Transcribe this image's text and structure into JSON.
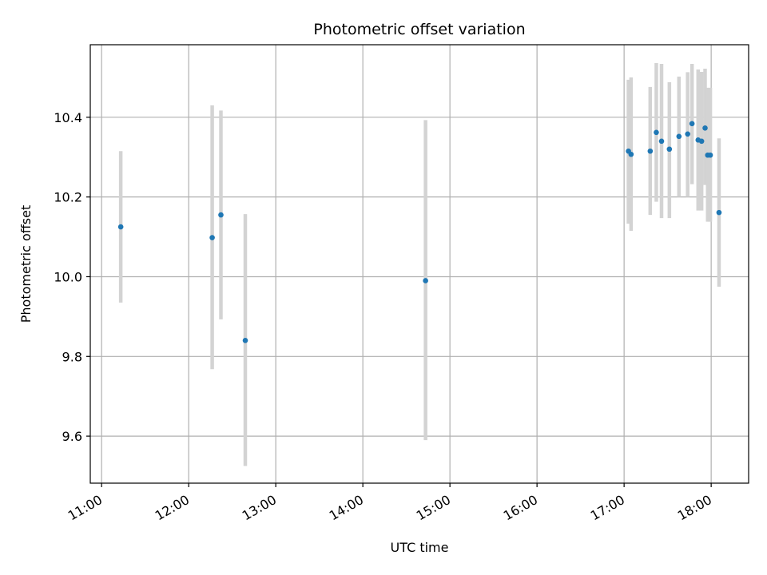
{
  "chart_data": {
    "type": "scatter",
    "title": "Photometric offset variation",
    "xlabel": "UTC time",
    "ylabel": "Photometric offset",
    "x_unit": "hours UTC",
    "xlim": [
      10.87,
      18.43
    ],
    "ylim": [
      9.482,
      10.582
    ],
    "grid": true,
    "x_ticks": [
      {
        "value": 11,
        "label": "11:00"
      },
      {
        "value": 12,
        "label": "12:00"
      },
      {
        "value": 13,
        "label": "13:00"
      },
      {
        "value": 14,
        "label": "14:00"
      },
      {
        "value": 15,
        "label": "15:00"
      },
      {
        "value": 16,
        "label": "16:00"
      },
      {
        "value": 17,
        "label": "17:00"
      },
      {
        "value": 18,
        "label": "18:00"
      }
    ],
    "y_ticks": [
      {
        "value": 9.6,
        "label": "9.6"
      },
      {
        "value": 9.8,
        "label": "9.8"
      },
      {
        "value": 10.0,
        "label": "10.0"
      },
      {
        "value": 10.2,
        "label": "10.2"
      },
      {
        "value": 10.4,
        "label": "10.4"
      }
    ],
    "colors": {
      "points": "#1f77b4",
      "errorbars": "#d3d3d3",
      "grid": "#b0b0b0"
    },
    "points": [
      {
        "x": 11.22,
        "y": 10.125,
        "low": 9.935,
        "high": 10.315
      },
      {
        "x": 12.27,
        "y": 10.098,
        "low": 9.768,
        "high": 10.43
      },
      {
        "x": 12.37,
        "y": 10.155,
        "low": 9.893,
        "high": 10.417
      },
      {
        "x": 12.65,
        "y": 9.84,
        "low": 9.525,
        "high": 10.157
      },
      {
        "x": 14.72,
        "y": 9.99,
        "low": 9.59,
        "high": 10.393
      },
      {
        "x": 17.05,
        "y": 10.315,
        "low": 10.133,
        "high": 10.494
      },
      {
        "x": 17.08,
        "y": 10.307,
        "low": 10.115,
        "high": 10.5
      },
      {
        "x": 17.3,
        "y": 10.315,
        "low": 10.155,
        "high": 10.476
      },
      {
        "x": 17.37,
        "y": 10.362,
        "low": 10.188,
        "high": 10.536
      },
      {
        "x": 17.43,
        "y": 10.34,
        "low": 10.147,
        "high": 10.534
      },
      {
        "x": 17.52,
        "y": 10.32,
        "low": 10.147,
        "high": 10.488
      },
      {
        "x": 17.63,
        "y": 10.352,
        "low": 10.2,
        "high": 10.502
      },
      {
        "x": 17.73,
        "y": 10.358,
        "low": 10.2,
        "high": 10.513
      },
      {
        "x": 17.78,
        "y": 10.384,
        "low": 10.232,
        "high": 10.534
      },
      {
        "x": 17.85,
        "y": 10.343,
        "low": 10.166,
        "high": 10.52
      },
      {
        "x": 17.89,
        "y": 10.34,
        "low": 10.166,
        "high": 10.514
      },
      {
        "x": 17.93,
        "y": 10.373,
        "low": 10.23,
        "high": 10.522
      },
      {
        "x": 17.96,
        "y": 10.305,
        "low": 10.138,
        "high": 10.474
      },
      {
        "x": 17.99,
        "y": 10.305,
        "low": 10.138,
        "high": 10.474
      },
      {
        "x": 18.09,
        "y": 10.161,
        "low": 9.975,
        "high": 10.347
      }
    ]
  }
}
